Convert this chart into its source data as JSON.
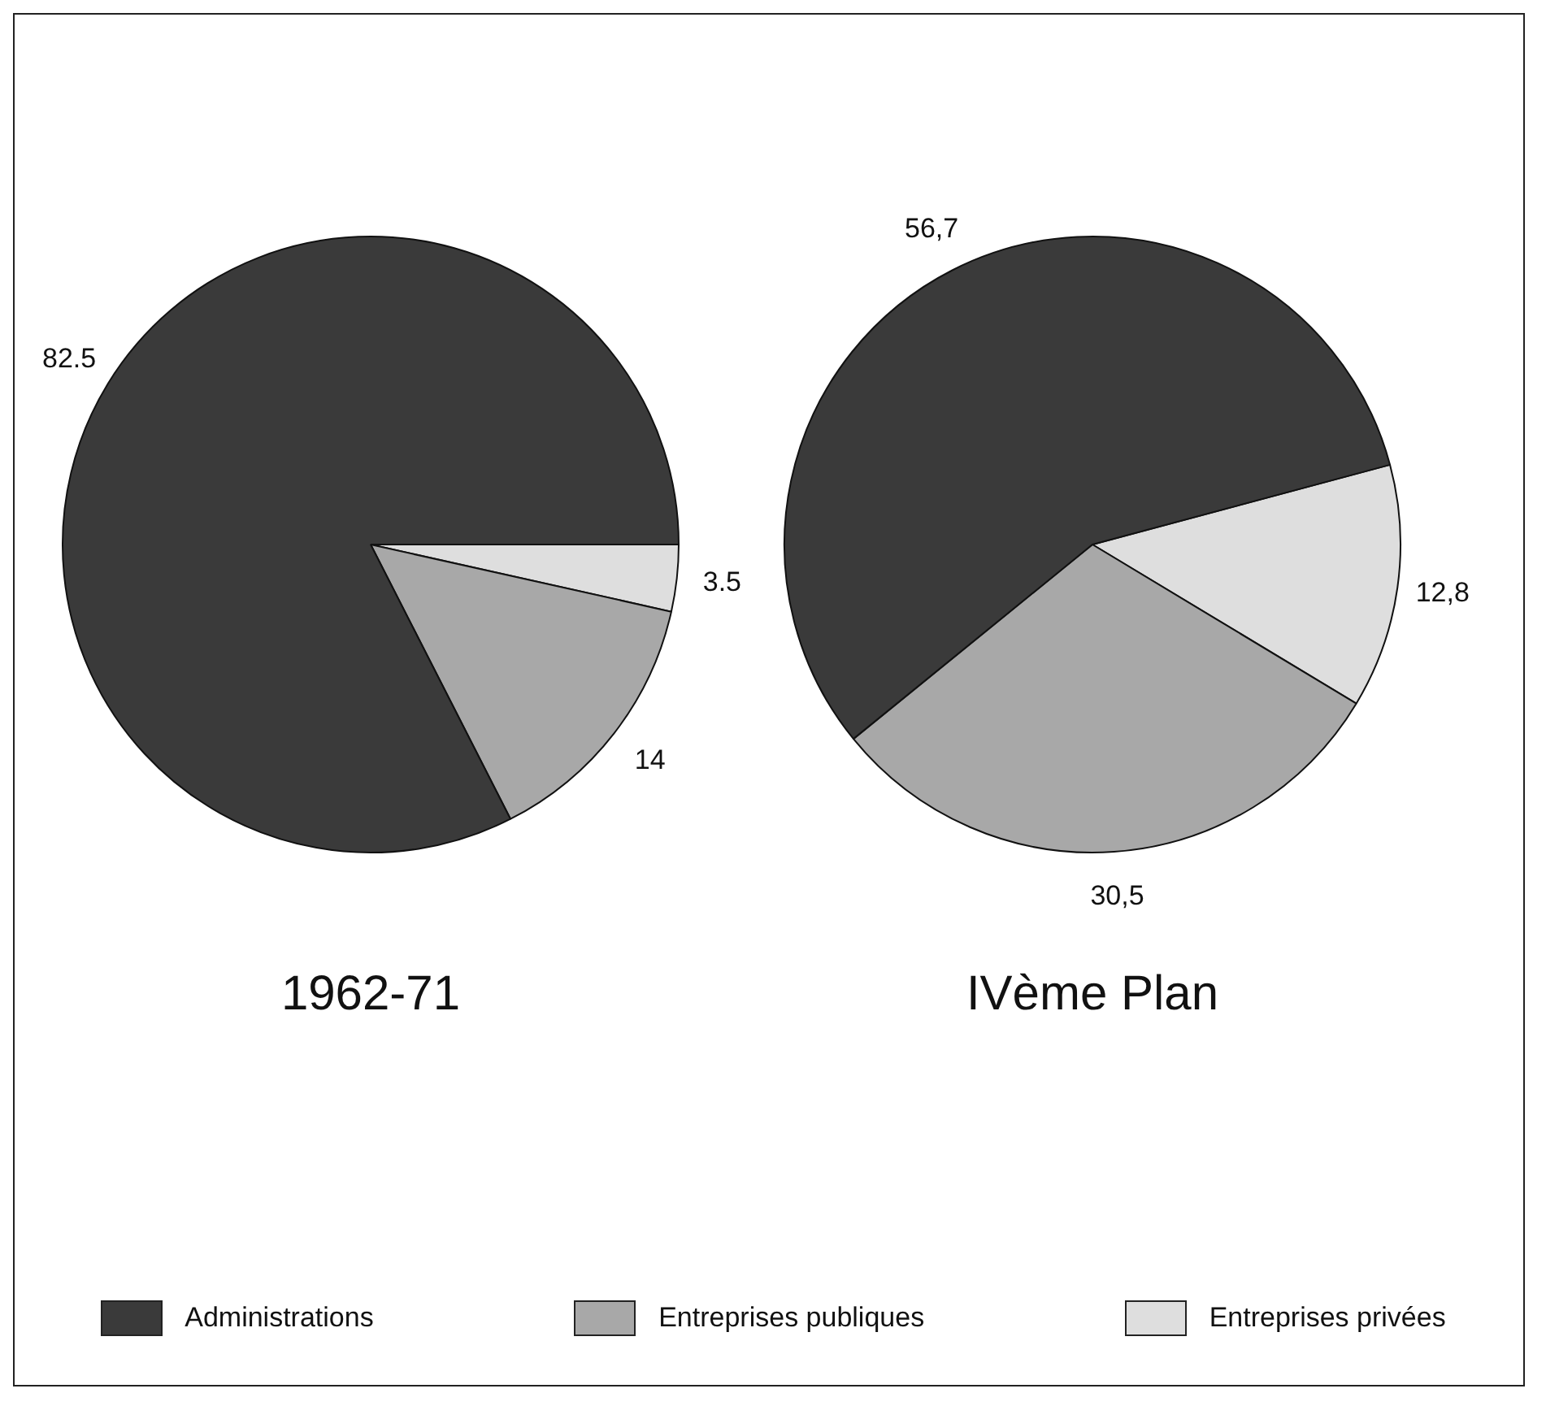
{
  "chart_data": [
    {
      "type": "pie",
      "title": "1962-71",
      "categories": [
        "Administrations",
        "Entreprises publiques",
        "Entreprises privées"
      ],
      "values": [
        82.5,
        14,
        3.5
      ],
      "value_labels": [
        "82.5",
        "14",
        "3.5"
      ],
      "colors": [
        "#3a3a3a",
        "#a8a8a8",
        "#dedede"
      ],
      "legend": "bottom"
    },
    {
      "type": "pie",
      "title": "IVème Plan",
      "categories": [
        null,
        null,
        null
      ],
      "values": [
        56.7,
        30.5,
        12.8
      ],
      "value_labels": [
        "56,7",
        "30,5",
        "12,8"
      ],
      "colors": [
        "#3a3a3a",
        "#a8a8a8",
        "#dedede"
      ]
    }
  ]
}
